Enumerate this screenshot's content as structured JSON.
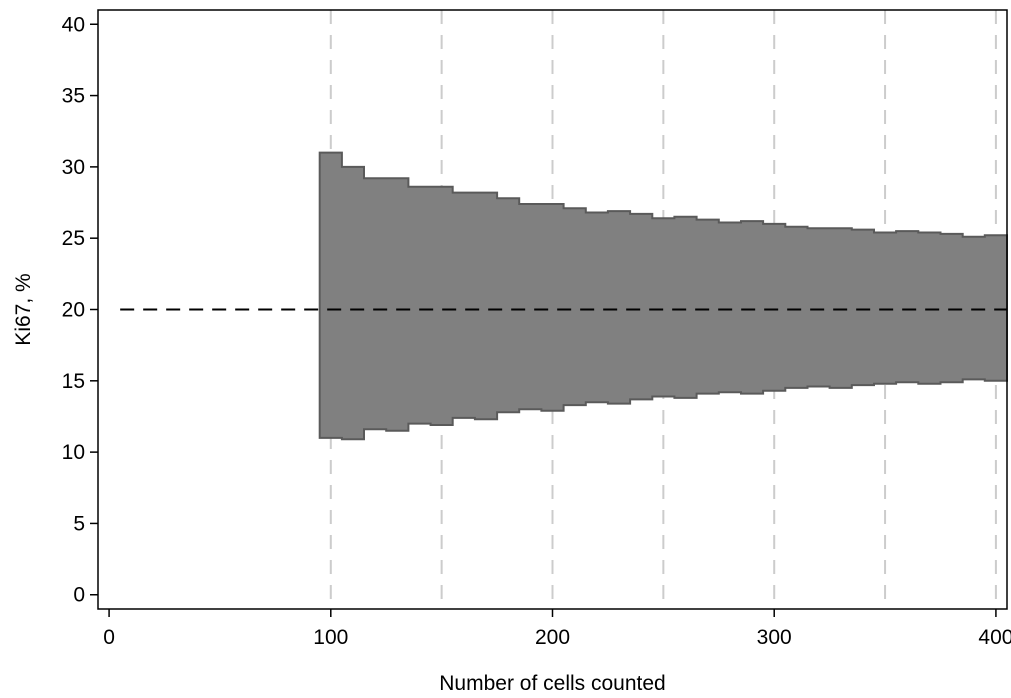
{
  "chart_data": {
    "type": "area",
    "title": "",
    "xlabel": "Number of cells counted",
    "ylabel": "Ki67, %",
    "xlim": [
      -5,
      405
    ],
    "ylim": [
      -1,
      41
    ],
    "xticks": [
      0,
      100,
      200,
      300,
      400
    ],
    "yticks": [
      0,
      5,
      10,
      15,
      20,
      25,
      30,
      35,
      40
    ],
    "x_gridlines": [
      100,
      150,
      200,
      250,
      300,
      350,
      400
    ],
    "reference_line": {
      "y": 20,
      "x_range": [
        5,
        405
      ],
      "style": "dashed"
    },
    "band": {
      "name": "",
      "step": 10,
      "x_start": 95,
      "x_end": 405,
      "upper": [
        31.0,
        30.0,
        29.2,
        29.2,
        28.6,
        28.6,
        28.2,
        28.2,
        27.8,
        27.4,
        27.4,
        27.1,
        26.8,
        26.9,
        26.7,
        26.4,
        26.5,
        26.3,
        26.1,
        26.2,
        26.0,
        25.8,
        25.7,
        25.7,
        25.6,
        25.4,
        25.5,
        25.4,
        25.3,
        25.1,
        25.2
      ],
      "lower": [
        11.0,
        10.9,
        11.6,
        11.5,
        12.0,
        11.9,
        12.4,
        12.3,
        12.8,
        13.0,
        12.9,
        13.3,
        13.5,
        13.4,
        13.7,
        13.9,
        13.8,
        14.1,
        14.2,
        14.1,
        14.3,
        14.5,
        14.6,
        14.5,
        14.7,
        14.8,
        14.9,
        14.8,
        14.9,
        15.1,
        15.0
      ]
    },
    "colors": {
      "band_fill": "#808080",
      "band_stroke": "#5a5a5a",
      "gridline": "#cccccc",
      "reference_line": "#000000",
      "axis": "#000000"
    },
    "grid": "vertical dashed",
    "legend": "none"
  }
}
